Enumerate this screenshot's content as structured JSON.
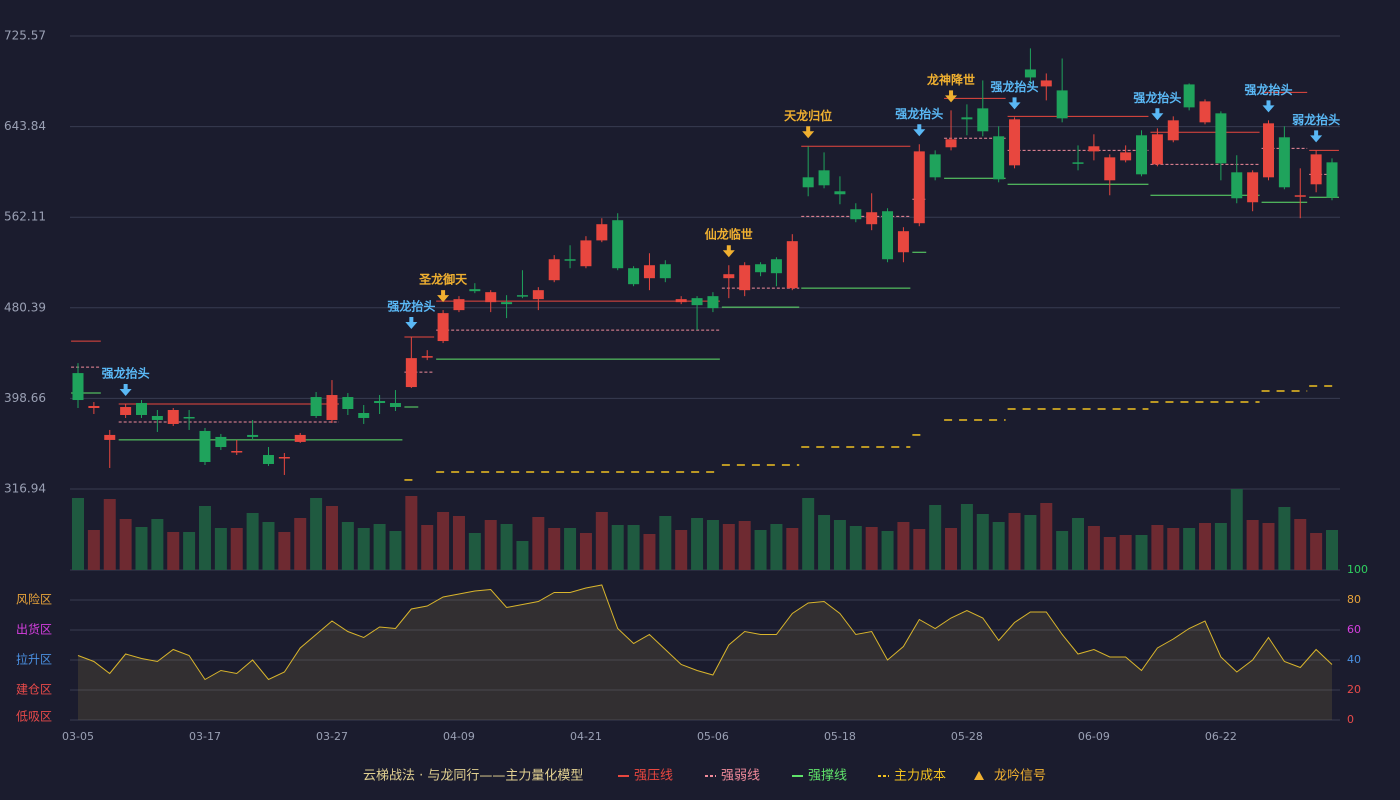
{
  "chart_data": {
    "type": "candlestick",
    "categories": [
      "03-05",
      null,
      null,
      null,
      null,
      null,
      null,
      null,
      "03-17",
      null,
      null,
      null,
      null,
      null,
      null,
      null,
      "03-27",
      null,
      null,
      null,
      null,
      null,
      null,
      null,
      "04-09",
      null,
      null,
      null,
      null,
      null,
      null,
      null,
      "04-21",
      null,
      null,
      null,
      null,
      null,
      null,
      null,
      "05-06",
      null,
      null,
      null,
      null,
      null,
      null,
      null,
      "05-18",
      null,
      null,
      null,
      null,
      null,
      null,
      null,
      "05-28",
      null,
      null,
      null,
      null,
      null,
      null,
      null,
      "06-09",
      null,
      null,
      null,
      null,
      null,
      null,
      null,
      "06-22",
      null,
      null,
      null,
      null,
      null,
      null,
      null
    ],
    "open": [
      421.5,
      390.0,
      361.2,
      383.7,
      394.5,
      382.8,
      375.6,
      381.9,
      369.3,
      363.9,
      350.3,
      365.7,
      347.6,
      344.9,
      359.4,
      399.9,
      379.2,
      399.9,
      385.5,
      396.3,
      394.5,
      408.9,
      435.9,
      450.4,
      478.3,
      497.2,
      485.5,
      485.5,
      491.8,
      488.2,
      505.3,
      524.2,
      517.9,
      541.2,
      559.4,
      516.1,
      507.1,
      519.7,
      485.5,
      489.1,
      490.9,
      507.1,
      496.3,
      519.7,
      524.2,
      498.1,
      598.1,
      604.4,
      585.5,
      569.3,
      555.8,
      567.5,
      530.5,
      556.7,
      618.8,
      625.2,
      652.2,
      660.3,
      635.1,
      608.9,
      695.4,
      680.1,
      676.5,
      611.6,
      621.5,
      595.4,
      613.4,
      636.0,
      609.8,
      631.5,
      681.9,
      647.7,
      655.8,
      602.6,
      575.6,
      598.1,
      634.2,
      581.0,
      591.8,
      611.6
    ],
    "high": [
      430.5,
      395.4,
      370.2,
      393.6,
      397.2,
      388.2,
      390.0,
      388.2,
      372.0,
      366.6,
      361.2,
      379.2,
      354.8,
      349.4,
      367.5,
      404.4,
      415.2,
      403.5,
      392.7,
      401.7,
      406.2,
      454.0,
      442.2,
      478.3,
      490.9,
      502.6,
      496.3,
      491.8,
      514.3,
      499.0,
      527.9,
      536.8,
      545.0,
      561.2,
      565.7,
      517.9,
      529.6,
      523.3,
      490.9,
      490.9,
      494.5,
      518.8,
      521.5,
      521.5,
      526.0,
      546.8,
      626.1,
      620.6,
      599.0,
      574.7,
      583.7,
      570.2,
      553.1,
      627.9,
      622.4,
      658.5,
      663.9,
      685.5,
      644.1,
      652.2,
      714.4,
      691.8,
      705.3,
      626.9,
      636.9,
      618.8,
      626.9,
      640.5,
      642.3,
      653.1,
      682.8,
      668.4,
      657.6,
      618.0,
      604.4,
      649.5,
      644.1,
      606.2,
      622.4,
      615.2
    ],
    "low": [
      390.0,
      384.6,
      335.9,
      381.0,
      381.0,
      368.4,
      373.8,
      370.2,
      338.6,
      352.1,
      347.6,
      361.2,
      337.7,
      329.6,
      358.5,
      381.0,
      376.5,
      383.7,
      375.6,
      384.6,
      387.3,
      408.0,
      433.2,
      448.6,
      476.5,
      493.6,
      476.5,
      471.1,
      489.1,
      478.3,
      503.5,
      516.1,
      516.1,
      539.6,
      514.3,
      499.9,
      496.3,
      503.5,
      483.7,
      460.3,
      476.5,
      489.1,
      490.9,
      508.9,
      499.9,
      496.3,
      581.0,
      588.2,
      573.8,
      557.6,
      550.4,
      521.5,
      521.5,
      554.0,
      595.4,
      622.4,
      636.0,
      635.1,
      593.6,
      606.2,
      681.9,
      667.5,
      647.7,
      604.4,
      613.4,
      581.9,
      611.6,
      599.0,
      608.0,
      629.7,
      658.5,
      645.9,
      595.4,
      574.7,
      567.5,
      595.4,
      587.3,
      561.2,
      584.6,
      577.4
    ],
    "close": [
      397.2,
      391.8,
      365.7,
      390.9,
      383.7,
      379.2,
      388.2,
      381.0,
      341.3,
      354.8,
      351.2,
      363.9,
      339.5,
      345.8,
      365.7,
      382.8,
      401.7,
      389.1,
      381.0,
      394.5,
      390.9,
      435.0,
      436.8,
      475.6,
      488.2,
      495.4,
      494.5,
      483.7,
      490.9,
      496.3,
      524.2,
      523.3,
      541.2,
      555.8,
      516.1,
      501.7,
      518.8,
      507.1,
      488.2,
      482.8,
      480.1,
      510.7,
      518.8,
      512.5,
      511.6,
      540.5,
      589.1,
      590.9,
      582.8,
      560.3,
      566.6,
      524.2,
      549.5,
      621.5,
      598.1,
      632.4,
      650.4,
      639.6,
      596.3,
      650.4,
      688.2,
      685.5,
      651.3,
      610.7,
      626.1,
      616.1,
      620.6,
      600.8,
      636.9,
      649.5,
      661.2,
      666.6,
      610.7,
      579.2,
      602.6,
      646.8,
      589.1,
      581.9,
      618.8,
      580.1
    ],
    "up_color": "#e8473f",
    "down_color": "#1fa35c",
    "ylim": [
      316.94,
      725.57
    ],
    "yticks": [
      316.94,
      398.66,
      480.39,
      562.11,
      643.84,
      725.57
    ],
    "grid": true,
    "volume": {
      "up_color": "#6e2a31",
      "down_color": "#1f5a40",
      "values": [
        72,
        40,
        71,
        51,
        43,
        51,
        38,
        38,
        64,
        42,
        42,
        57,
        48,
        38,
        52,
        72,
        64,
        48,
        42,
        46,
        39,
        74,
        45,
        58,
        54,
        37,
        50,
        46,
        29,
        53,
        42,
        42,
        37,
        58,
        45,
        45,
        36,
        54,
        40,
        52,
        50,
        46,
        49,
        40,
        46,
        42,
        72,
        55,
        50,
        44,
        43,
        39,
        48,
        41,
        65,
        42,
        66,
        56,
        48,
        57,
        55,
        67,
        39,
        52,
        44,
        33,
        35,
        35,
        45,
        42,
        42,
        47,
        47,
        81,
        50,
        47,
        63,
        51,
        37,
        40
      ]
    },
    "oscillator": {
      "color": "#d9b52c",
      "ylim": [
        0,
        100
      ],
      "yticks": [
        0,
        20,
        40,
        60,
        80,
        100
      ],
      "ytick_colors": [
        "#e84a4a",
        "#e84a4a",
        "#4a90e2",
        "#d63fe0",
        "#e8a33a",
        "#2fd060"
      ],
      "zones": [
        {
          "value": 80,
          "label": "风险区",
          "color": "#e8a33a"
        },
        {
          "value": 60,
          "label": "出货区",
          "color": "#d63fe0"
        },
        {
          "value": 40,
          "label": "拉升区",
          "color": "#4a90e2"
        },
        {
          "value": 20,
          "label": "建仓区",
          "color": "#e84a4a"
        },
        {
          "value": 0,
          "label": "低吸区",
          "color": "#e84a4a"
        }
      ],
      "values": [
        43,
        39,
        31,
        44,
        41,
        39,
        47,
        43,
        27,
        33,
        31,
        40,
        27,
        32,
        48,
        57,
        66,
        59,
        55,
        62,
        61,
        74,
        76,
        82,
        84,
        86,
        87,
        75,
        77,
        79,
        85,
        85,
        88,
        90,
        61,
        51,
        57,
        47,
        37,
        33,
        30,
        50,
        59,
        57,
        57,
        71,
        78,
        79,
        71,
        57,
        59,
        40,
        49,
        67,
        61,
        68,
        73,
        68,
        53,
        65,
        72,
        72,
        57,
        44,
        47,
        42,
        42,
        33,
        48,
        54,
        61,
        66,
        42,
        32,
        40,
        55,
        39,
        35,
        47,
        37
      ]
    },
    "levels": [
      {
        "name": "强压线",
        "color": "#e8473f",
        "dashed": false,
        "segments": [
          {
            "from": 0,
            "to": 1,
            "value": 450.3
          },
          {
            "from": 3,
            "to": 16,
            "value": 393.6
          },
          {
            "from": 21,
            "to": 22,
            "value": 454.0
          },
          {
            "from": 23,
            "to": 40,
            "value": 486.4
          },
          {
            "from": 46,
            "to": 52,
            "value": 626.1
          },
          {
            "from": 55,
            "to": 58,
            "value": 669.3
          },
          {
            "from": 59,
            "to": 67,
            "value": 653.1
          },
          {
            "from": 68,
            "to": 74,
            "value": 638.7
          },
          {
            "from": 75,
            "to": 77,
            "value": 674.7
          },
          {
            "from": 78,
            "to": 79,
            "value": 622.4
          }
        ]
      },
      {
        "name": "强弱线",
        "color": "#f08a9a",
        "dashed": true,
        "segments": [
          {
            "from": 0,
            "to": 1,
            "value": 426.9
          },
          {
            "from": 3,
            "to": 16,
            "value": 377.4
          },
          {
            "from": 21,
            "to": 22,
            "value": 422.4
          },
          {
            "from": 23,
            "to": 40,
            "value": 460.3
          },
          {
            "from": 41,
            "to": 45,
            "value": 498.1
          },
          {
            "from": 46,
            "to": 52,
            "value": 562.9
          },
          {
            "from": 53,
            "to": 53,
            "value": 578.3
          },
          {
            "from": 55,
            "to": 58,
            "value": 633.3
          },
          {
            "from": 59,
            "to": 67,
            "value": 622.4
          },
          {
            "from": 68,
            "to": 74,
            "value": 609.8
          },
          {
            "from": 75,
            "to": 77,
            "value": 624.2
          },
          {
            "from": 78,
            "to": 79,
            "value": 600.8
          }
        ]
      },
      {
        "name": "强撑线",
        "color": "#5fe26a",
        "dashed": false,
        "segments": [
          {
            "from": 0,
            "to": 1,
            "value": 403.5
          },
          {
            "from": 3,
            "to": 20,
            "value": 361.2
          },
          {
            "from": 21,
            "to": 21,
            "value": 390.9
          },
          {
            "from": 23,
            "to": 40,
            "value": 434.1
          },
          {
            "from": 41,
            "to": 45,
            "value": 481.0
          },
          {
            "from": 46,
            "to": 52,
            "value": 498.1
          },
          {
            "from": 53,
            "to": 53,
            "value": 530.5
          },
          {
            "from": 55,
            "to": 58,
            "value": 597.2
          },
          {
            "from": 59,
            "to": 67,
            "value": 591.8
          },
          {
            "from": 68,
            "to": 74,
            "value": 581.9
          },
          {
            "from": 75,
            "to": 77,
            "value": 575.6
          },
          {
            "from": 78,
            "to": 79,
            "value": 580.1
          }
        ]
      },
      {
        "name": "主力成本",
        "color": "#f0c020",
        "dashed": true,
        "segments": [
          {
            "from": 21,
            "to": 21,
            "value": 325.1
          },
          {
            "from": 23,
            "to": 40,
            "value": 332.3
          },
          {
            "from": 41,
            "to": 45,
            "value": 338.6
          },
          {
            "from": 46,
            "to": 52,
            "value": 354.8
          },
          {
            "from": 53,
            "to": 53,
            "value": 365.7
          },
          {
            "from": 55,
            "to": 58,
            "value": 379.2
          },
          {
            "from": 59,
            "to": 67,
            "value": 389.1
          },
          {
            "from": 68,
            "to": 74,
            "value": 395.4
          },
          {
            "from": 75,
            "to": 77,
            "value": 405.3
          },
          {
            "from": 78,
            "to": 79,
            "value": 409.8
          }
        ]
      }
    ],
    "signal_name": "龙吟信号",
    "signal_color": "#f0b030",
    "signals": [
      {
        "index": 3,
        "text": "强龙抬头",
        "color": "#5ab8f5"
      },
      {
        "index": 21,
        "text": "强龙抬头",
        "color": "#5ab8f5"
      },
      {
        "index": 23,
        "text": "圣龙御天",
        "color": "#f0b030"
      },
      {
        "index": 41,
        "text": "仙龙临世",
        "color": "#f0b030"
      },
      {
        "index": 46,
        "text": "天龙归位",
        "color": "#f0b030"
      },
      {
        "index": 53,
        "text": "强龙抬头",
        "color": "#5ab8f5"
      },
      {
        "index": 55,
        "text": "龙神降世",
        "color": "#f0b030"
      },
      {
        "index": 59,
        "text": "强龙抬头",
        "color": "#5ab8f5"
      },
      {
        "index": 68,
        "text": "强龙抬头",
        "color": "#5ab8f5"
      },
      {
        "index": 75,
        "text": "强龙抬头",
        "color": "#5ab8f5"
      },
      {
        "index": 78,
        "text": "弱龙抬头",
        "color": "#5ab8f5"
      }
    ],
    "legend_title": "云梯战法 · 与龙同行——主力量化模型"
  }
}
